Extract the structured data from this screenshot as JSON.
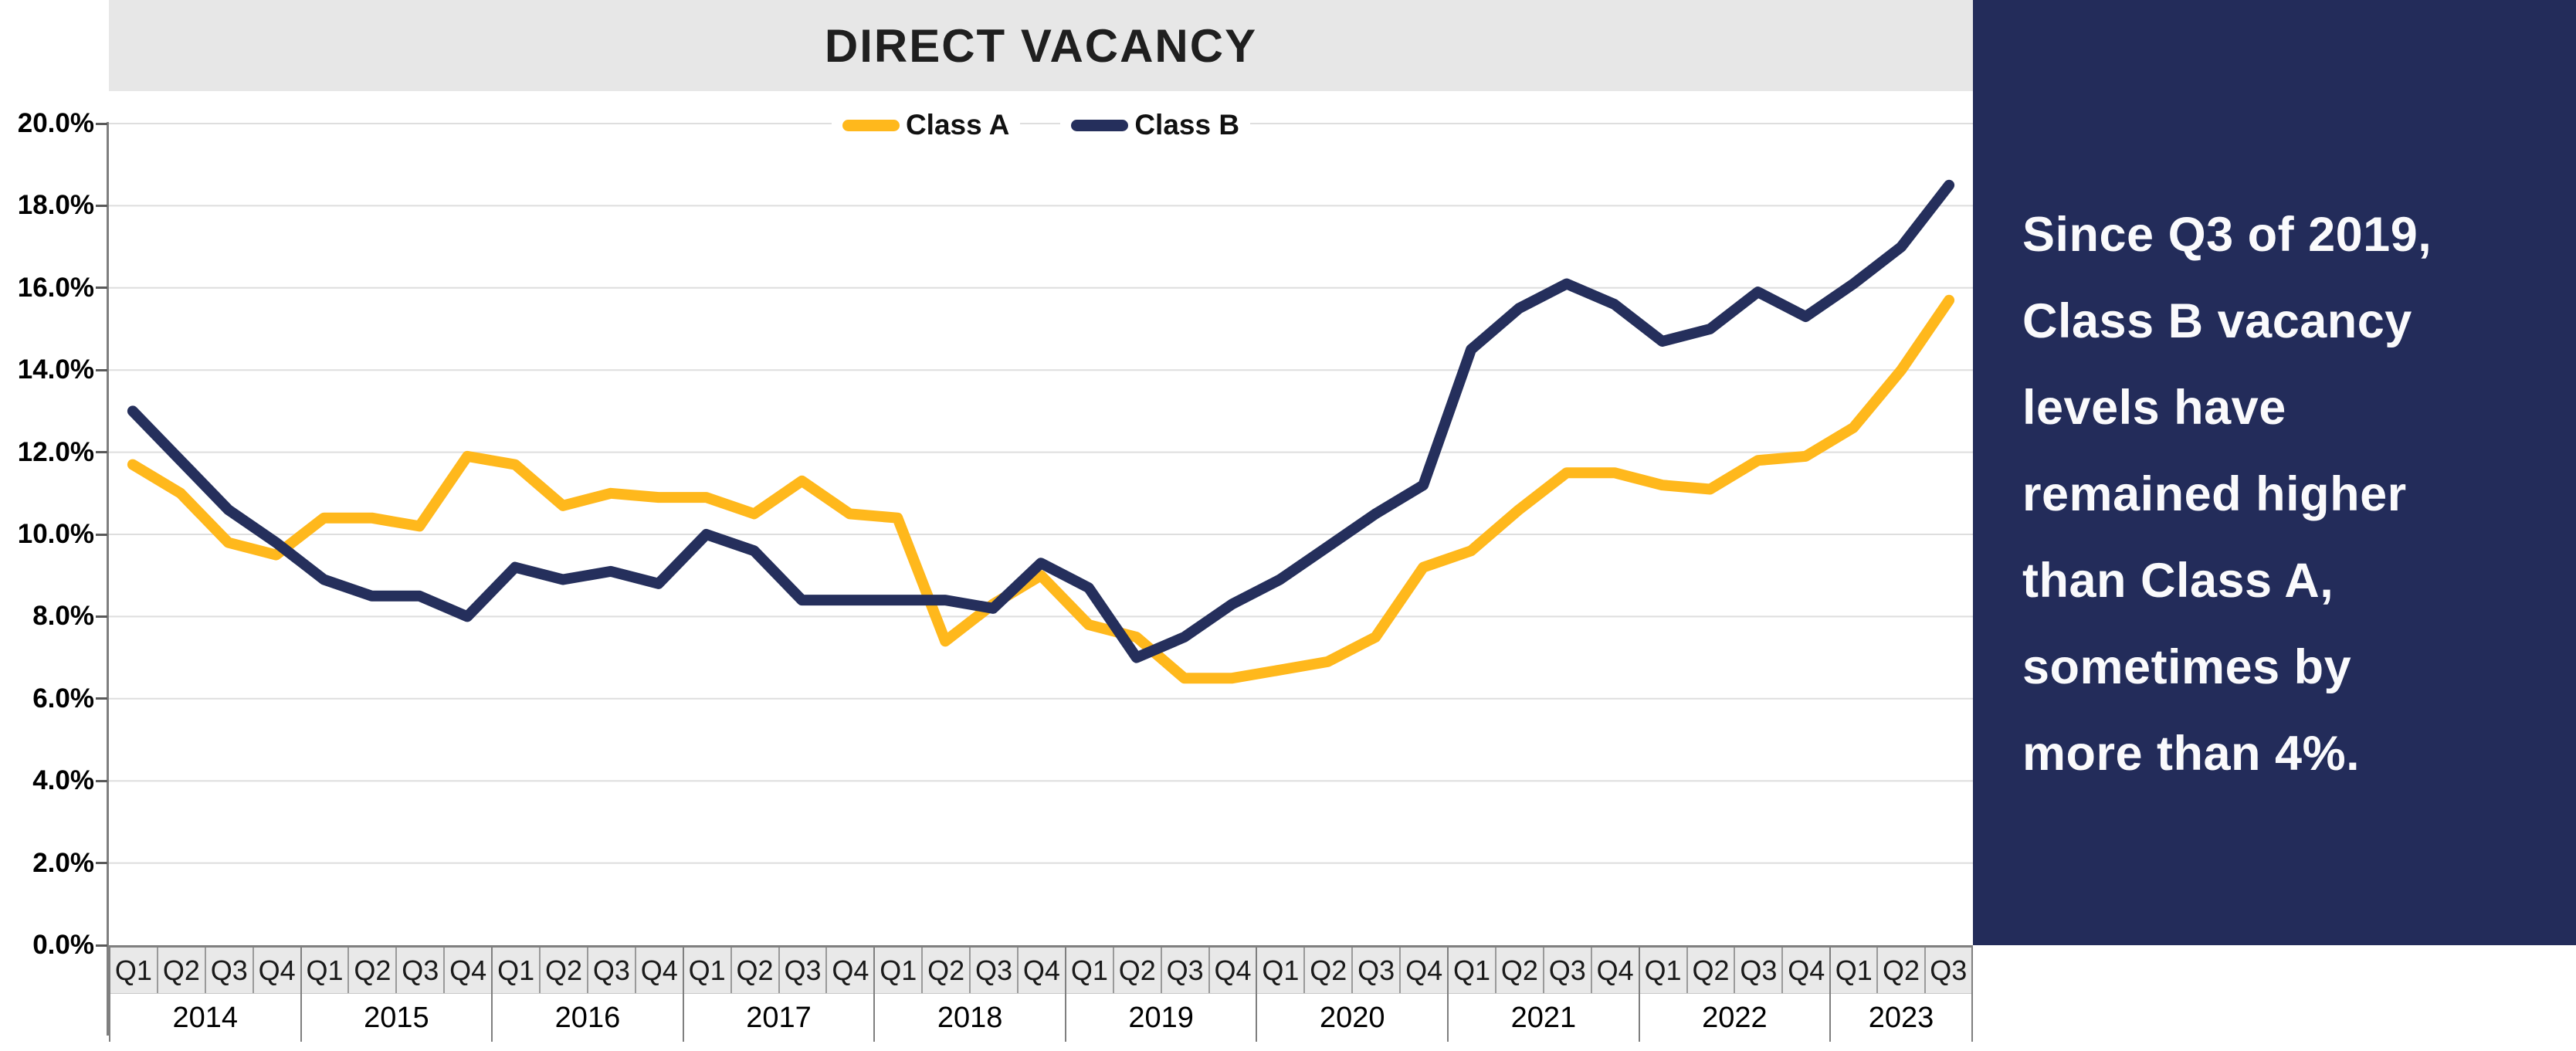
{
  "title": "DIRECT VACANCY",
  "colors": {
    "class_a": "#FFB81C",
    "class_b": "#252F5C",
    "panel_bg": "#232C5A",
    "title_bar_bg": "#E7E7E7",
    "gridline": "#DEDEDE",
    "axis_line": "#7F7F7F"
  },
  "side_panel": {
    "text": "Since Q3 of 2019, Class B vacancy levels have remained higher than Class A, sometimes by more than 4%.",
    "lines": [
      "Since Q3 of 2019,",
      "Class B vacancy",
      "levels have",
      "remained higher",
      "than Class A,",
      "sometimes by",
      "more than 4%."
    ]
  },
  "chart_data": {
    "type": "line",
    "title": "DIRECT VACANCY",
    "xlabel": "",
    "ylabel": "",
    "ylim": [
      0,
      20
    ],
    "ytick_step": 2,
    "ytick_labels": [
      "0.0%",
      "2.0%",
      "4.0%",
      "6.0%",
      "8.0%",
      "10.0%",
      "12.0%",
      "14.0%",
      "16.0%",
      "18.0%",
      "20.0%"
    ],
    "grid": "horizontal",
    "legend_position": "top-center",
    "years": [
      {
        "label": "2014",
        "quarters": [
          "Q1",
          "Q2",
          "Q3",
          "Q4"
        ]
      },
      {
        "label": "2015",
        "quarters": [
          "Q1",
          "Q2",
          "Q3",
          "Q4"
        ]
      },
      {
        "label": "2016",
        "quarters": [
          "Q1",
          "Q2",
          "Q3",
          "Q4"
        ]
      },
      {
        "label": "2017",
        "quarters": [
          "Q1",
          "Q2",
          "Q3",
          "Q4"
        ]
      },
      {
        "label": "2018",
        "quarters": [
          "Q1",
          "Q2",
          "Q3",
          "Q4"
        ]
      },
      {
        "label": "2019",
        "quarters": [
          "Q1",
          "Q2",
          "Q3",
          "Q4"
        ]
      },
      {
        "label": "2020",
        "quarters": [
          "Q1",
          "Q2",
          "Q3",
          "Q4"
        ]
      },
      {
        "label": "2021",
        "quarters": [
          "Q1",
          "Q2",
          "Q3",
          "Q4"
        ]
      },
      {
        "label": "2022",
        "quarters": [
          "Q1",
          "Q2",
          "Q3",
          "Q4"
        ]
      },
      {
        "label": "2023",
        "quarters": [
          "Q1",
          "Q2",
          "Q3"
        ]
      }
    ],
    "series": [
      {
        "name": "Class A",
        "color_key": "class_a",
        "values": [
          11.7,
          11.0,
          9.8,
          9.5,
          10.4,
          10.4,
          10.2,
          11.9,
          11.7,
          10.7,
          11.0,
          10.9,
          10.9,
          10.5,
          11.3,
          10.5,
          10.4,
          7.4,
          8.3,
          9.0,
          7.8,
          7.5,
          6.5,
          6.5,
          6.7,
          6.9,
          7.5,
          9.2,
          9.6,
          10.6,
          11.5,
          11.5,
          11.2,
          11.1,
          11.8,
          11.9,
          12.6,
          14.0,
          15.7
        ]
      },
      {
        "name": "Class B",
        "color_key": "class_b",
        "values": [
          13.0,
          11.8,
          10.6,
          9.8,
          8.9,
          8.5,
          8.5,
          8.0,
          9.2,
          8.9,
          9.1,
          8.8,
          10.0,
          9.6,
          8.4,
          8.4,
          8.4,
          8.4,
          8.2,
          9.3,
          8.7,
          7.0,
          7.5,
          8.3,
          8.9,
          9.7,
          10.5,
          11.2,
          14.5,
          15.5,
          16.1,
          15.6,
          14.7,
          15.0,
          15.9,
          15.3,
          16.1,
          17.0,
          18.5
        ]
      }
    ]
  }
}
